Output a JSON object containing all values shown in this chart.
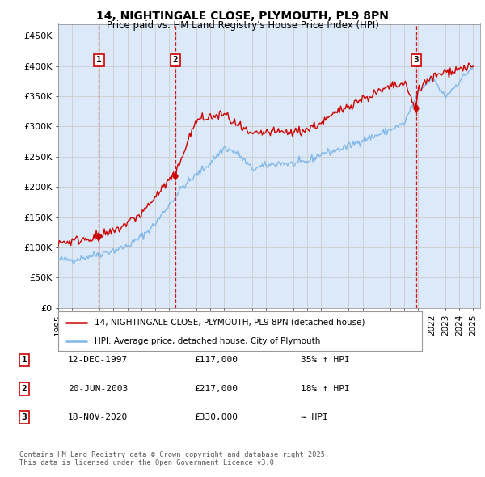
{
  "title_line1": "14, NIGHTINGALE CLOSE, PLYMOUTH, PL9 8PN",
  "title_line2": "Price paid vs. HM Land Registry's House Price Index (HPI)",
  "ylabel_ticks": [
    "£0",
    "£50K",
    "£100K",
    "£150K",
    "£200K",
    "£250K",
    "£300K",
    "£350K",
    "£400K",
    "£450K"
  ],
  "ytick_vals": [
    0,
    50000,
    100000,
    150000,
    200000,
    250000,
    300000,
    350000,
    400000,
    450000
  ],
  "xlim_start": 1995.0,
  "xlim_end": 2025.5,
  "ylim_min": 0,
  "ylim_max": 470000,
  "sale_dates": [
    1997.95,
    2003.47,
    2020.88
  ],
  "sale_prices": [
    117000,
    217000,
    330000
  ],
  "sale_labels": [
    "1",
    "2",
    "3"
  ],
  "legend_line1": "14, NIGHTINGALE CLOSE, PLYMOUTH, PL9 8PN (detached house)",
  "legend_line2": "HPI: Average price, detached house, City of Plymouth",
  "table_rows": [
    [
      "1",
      "12-DEC-1997",
      "£117,000",
      "35% ↑ HPI"
    ],
    [
      "2",
      "20-JUN-2003",
      "£217,000",
      "18% ↑ HPI"
    ],
    [
      "3",
      "18-NOV-2020",
      "£330,000",
      "≈ HPI"
    ]
  ],
  "footnote": "Contains HM Land Registry data © Crown copyright and database right 2025.\nThis data is licensed under the Open Government Licence v3.0.",
  "background_color": "#dce9f8",
  "grid_color": "#cccccc",
  "red_color": "#cc0000",
  "blue_color": "#7fb8e8",
  "vline_color": "#cc0000",
  "box_color": "#cc0000",
  "hpi_waypoints_x": [
    1995,
    1996,
    1997,
    1998,
    1999,
    2000,
    2001,
    2002,
    2003,
    2004,
    2005,
    2006,
    2007,
    2008,
    2009,
    2010,
    2011,
    2012,
    2013,
    2014,
    2015,
    2016,
    2017,
    2018,
    2019,
    2020,
    2021,
    2022,
    2023,
    2024,
    2025
  ],
  "hpi_waypoints_y": [
    80000,
    79000,
    84000,
    89000,
    95000,
    102000,
    117000,
    138000,
    170000,
    200000,
    220000,
    240000,
    265000,
    255000,
    230000,
    235000,
    240000,
    238000,
    242000,
    255000,
    260000,
    268000,
    278000,
    285000,
    295000,
    305000,
    355000,
    380000,
    350000,
    375000,
    400000
  ],
  "prop_waypoints_x": [
    1995,
    1996,
    1997,
    1997.95,
    1999,
    2001,
    2003,
    2003.47,
    2004,
    2005,
    2006,
    2007,
    2008,
    2009,
    2010,
    2011,
    2012,
    2013,
    2014,
    2015,
    2016,
    2017,
    2018,
    2019,
    2020,
    2020.88,
    2021,
    2022,
    2023,
    2024,
    2025
  ],
  "prop_waypoints_y": [
    108000,
    110000,
    115000,
    117000,
    125000,
    155000,
    210000,
    217000,
    255000,
    310000,
    315000,
    320000,
    300000,
    285000,
    290000,
    290000,
    290000,
    295000,
    305000,
    320000,
    335000,
    345000,
    355000,
    365000,
    370000,
    330000,
    360000,
    380000,
    390000,
    395000,
    400000
  ]
}
